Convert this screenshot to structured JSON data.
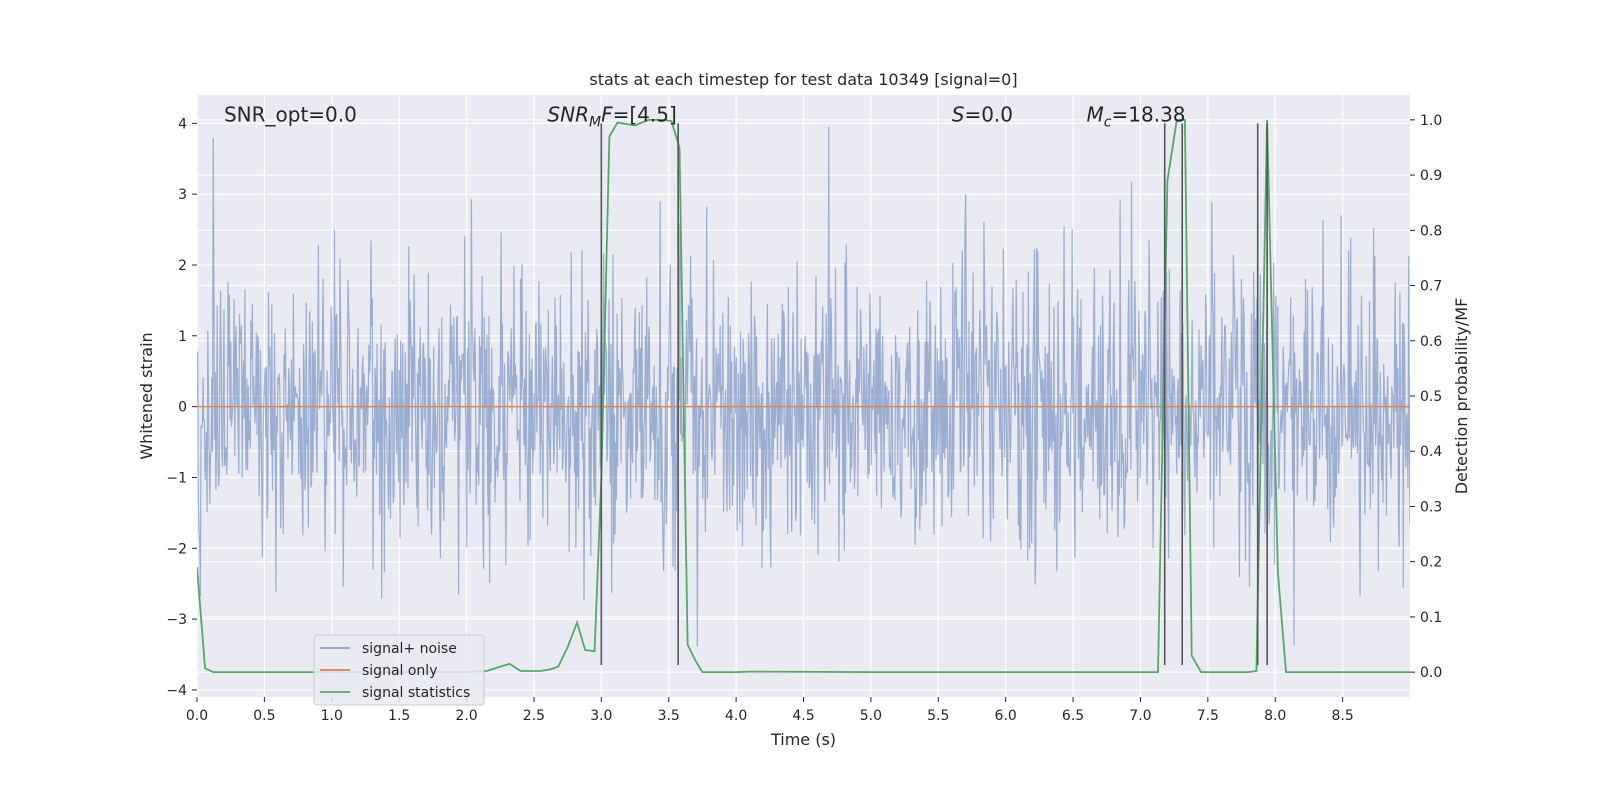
{
  "chart_data": {
    "type": "line",
    "title": "stats at each timestep for test data 10349 [signal=0]",
    "xlabel": "Time (s)",
    "ylabel": "Whitened strain",
    "y2label": "Detection probability/MF",
    "xlim": [
      0,
      9
    ],
    "ylim": [
      -4.1,
      4.4
    ],
    "y2lim": [
      -0.045,
      1.045
    ],
    "x_ticks": [
      0.0,
      0.5,
      1.0,
      1.5,
      2.0,
      2.5,
      3.0,
      3.5,
      4.0,
      4.5,
      5.0,
      5.5,
      6.0,
      6.5,
      7.0,
      7.5,
      8.0,
      8.5
    ],
    "x_tick_labels": [
      "0.0",
      "0.5",
      "1.0",
      "1.5",
      "2.0",
      "2.5",
      "3.0",
      "3.5",
      "4.0",
      "4.5",
      "5.0",
      "5.5",
      "6.0",
      "6.5",
      "7.0",
      "7.5",
      "8.0",
      "8.5"
    ],
    "y_ticks": [
      -4,
      -3,
      -2,
      -1,
      0,
      1,
      2,
      3,
      4
    ],
    "y_tick_labels": [
      "−4",
      "−3",
      "−2",
      "−1",
      "0",
      "1",
      "2",
      "3",
      "4"
    ],
    "y2_ticks": [
      0.0,
      0.1,
      0.2,
      0.3,
      0.4,
      0.5,
      0.6,
      0.7,
      0.8,
      0.9,
      1.0
    ],
    "y2_tick_labels": [
      "0.0",
      "0.1",
      "0.2",
      "0.3",
      "0.4",
      "0.5",
      "0.6",
      "0.7",
      "0.8",
      "0.9",
      "1.0"
    ],
    "grid": true,
    "annotations": [
      {
        "text": "SNR_opt=0.0",
        "x": 0.2,
        "y": 4.0
      },
      {
        "text": "SNR",
        "sub": "M",
        "suffix": "F=[4.5]",
        "italic": true,
        "x": 2.6,
        "y": 4.0
      },
      {
        "text": "S",
        "sub": "",
        "suffix": "=0.0",
        "italic": true,
        "x": 5.6,
        "y": 4.0
      },
      {
        "text": "M",
        "sub": "c",
        "suffix": "=18.38",
        "italic": true,
        "x": 6.6,
        "y": 4.0
      }
    ],
    "vlines": [
      {
        "x": 3.0,
        "ymin": -3.65,
        "ymax": 4.0
      },
      {
        "x": 3.57,
        "ymin": -3.65,
        "ymax": 4.0
      },
      {
        "x": 7.18,
        "ymin": -3.65,
        "ymax": 4.0
      },
      {
        "x": 7.31,
        "ymin": -3.65,
        "ymax": 4.0
      },
      {
        "x": 7.87,
        "ymin": -3.65,
        "ymax": 4.0
      },
      {
        "x": 7.94,
        "ymin": -3.65,
        "ymax": 4.0
      }
    ],
    "legend": {
      "placement": "lower-left"
    },
    "series": [
      {
        "name": "signal+ noise",
        "color": "#4c72b0",
        "axis": "left",
        "style": "noise",
        "std": 1.0,
        "n_samples": 1800
      },
      {
        "name": "signal only",
        "color": "#dd8452",
        "axis": "left",
        "x": [
          0.0,
          9.0
        ],
        "values": [
          0.0,
          0.0
        ]
      },
      {
        "name": "signal statistics",
        "color": "#55a868",
        "axis": "right",
        "x": [
          0.0,
          0.06,
          0.12,
          0.5,
          1.0,
          1.5,
          2.0,
          2.15,
          2.25,
          2.32,
          2.4,
          2.55,
          2.62,
          2.68,
          2.75,
          2.82,
          2.88,
          2.95,
          3.0,
          3.06,
          3.12,
          3.25,
          3.35,
          3.45,
          3.52,
          3.58,
          3.64,
          3.7,
          3.75,
          4.0,
          4.1,
          5.0,
          6.0,
          7.0,
          7.13,
          7.2,
          7.27,
          7.33,
          7.38,
          7.45,
          7.6,
          7.8,
          7.86,
          7.94,
          8.02,
          8.08,
          8.5,
          9.0
        ],
        "values": [
          0.19,
          0.007,
          0.0,
          0.0,
          0.0,
          0.0,
          0.0,
          0.002,
          0.01,
          0.015,
          0.002,
          0.002,
          0.005,
          0.01,
          0.045,
          0.09,
          0.04,
          0.038,
          0.35,
          0.97,
          0.995,
          0.99,
          1.0,
          1.0,
          0.998,
          0.95,
          0.05,
          0.02,
          0.0,
          0.0,
          0.001,
          0.0,
          0.0,
          0.0,
          0.0,
          0.89,
          1.0,
          1.0,
          0.03,
          0.0,
          0.0,
          0.0,
          0.002,
          1.0,
          0.18,
          0.0,
          0.0,
          0.0
        ]
      }
    ]
  }
}
